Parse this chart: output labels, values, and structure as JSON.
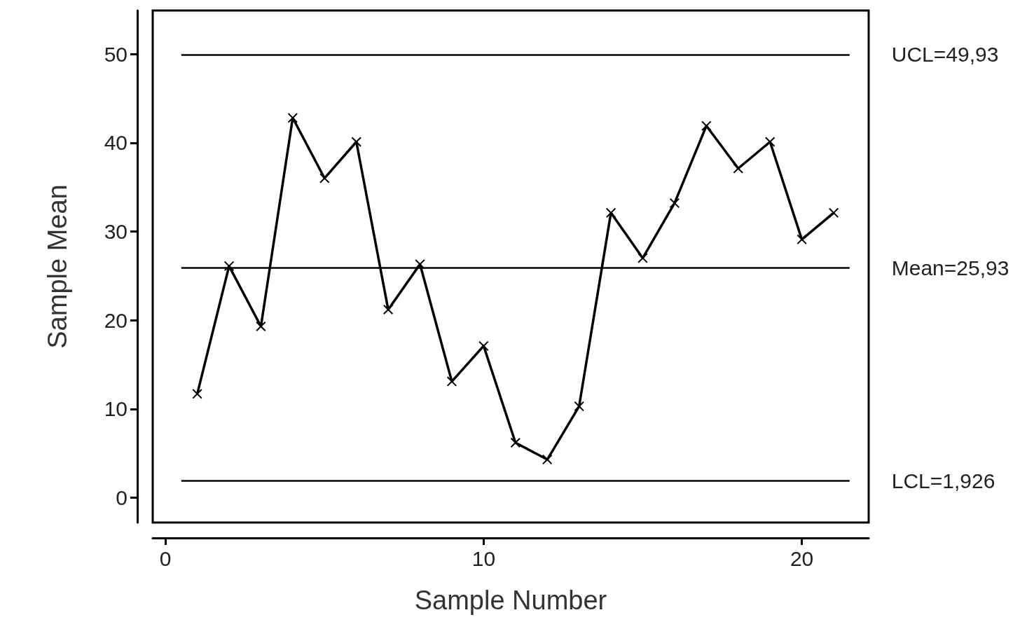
{
  "chart_data": {
    "type": "line",
    "xlabel": "Sample Number",
    "ylabel": "Sample Mean",
    "x": [
      1,
      2,
      3,
      4,
      5,
      6,
      7,
      8,
      9,
      10,
      11,
      12,
      13,
      14,
      15,
      16,
      17,
      18,
      19,
      20,
      21
    ],
    "series": [
      {
        "color": "#000000",
        "values": [
          11.7,
          26.1,
          19.3,
          42.8,
          36.0,
          40.1,
          21.2,
          26.3,
          13.1,
          17.1,
          6.2,
          4.3,
          10.3,
          32.1,
          27.0,
          33.2,
          41.9,
          37.1,
          40.1,
          29.1,
          32.1
        ]
      }
    ],
    "xlim": [
      -0.4,
      22.1
    ],
    "xticks": [
      0,
      10,
      20
    ],
    "ylim": [
      -2.8,
      54.9
    ],
    "yticks": [
      0,
      10,
      20,
      30,
      40,
      50
    ],
    "ref_lines": [
      {
        "axis": "y",
        "value": 49.93,
        "label": "UCL=49,93",
        "color": "#000000"
      },
      {
        "axis": "y",
        "value": 25.93,
        "label": "Mean=25,93",
        "color": "#000000"
      },
      {
        "axis": "y",
        "value": 1.926,
        "label": "LCL=1,926",
        "color": "#000000"
      }
    ],
    "marker": "cross",
    "line_style": "solid",
    "grid": false
  }
}
